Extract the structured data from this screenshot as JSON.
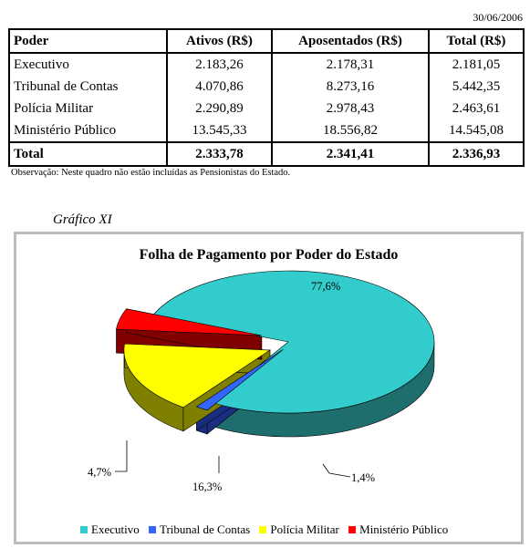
{
  "date": "30/06/2006",
  "table": {
    "headers": [
      "Poder",
      "Ativos (R$)",
      "Aposentados (R$)",
      "Total (R$)"
    ],
    "rows": [
      [
        "Executivo",
        "2.183,26",
        "2.178,31",
        "2.181,05"
      ],
      [
        "Tribunal de Contas",
        "4.070,86",
        "8.273,16",
        "5.442,35"
      ],
      [
        "Polícia Militar",
        "2.290,89",
        "2.978,43",
        "2.463,61"
      ],
      [
        "Ministério Público",
        "13.545,33",
        "18.556,82",
        "14.545,08"
      ]
    ],
    "total": [
      "Total",
      "2.333,78",
      "2.341,41",
      "2.336,93"
    ]
  },
  "note": "Observação: Neste quadro não estão incluídas as Pensionistas do Estado.",
  "chart_caption": "Gráfico XI",
  "chart_data": {
    "type": "pie",
    "title": "Folha de Pagamento por Poder do Estado",
    "categories": [
      "Executivo",
      "Tribunal de Contas",
      "Polícia Militar",
      "Ministério Público"
    ],
    "values": [
      77.6,
      1.4,
      16.3,
      4.7
    ],
    "labels": [
      "77,6%",
      "1,4%",
      "16,3%",
      "4,7%"
    ],
    "colors": [
      "#33CCCC",
      "#3366FF",
      "#FFFF00",
      "#FF0000"
    ],
    "side_colors": [
      "#1E6E6E",
      "#1A2E80",
      "#808000",
      "#800000"
    ],
    "legend_position": "bottom",
    "three_d": true
  }
}
